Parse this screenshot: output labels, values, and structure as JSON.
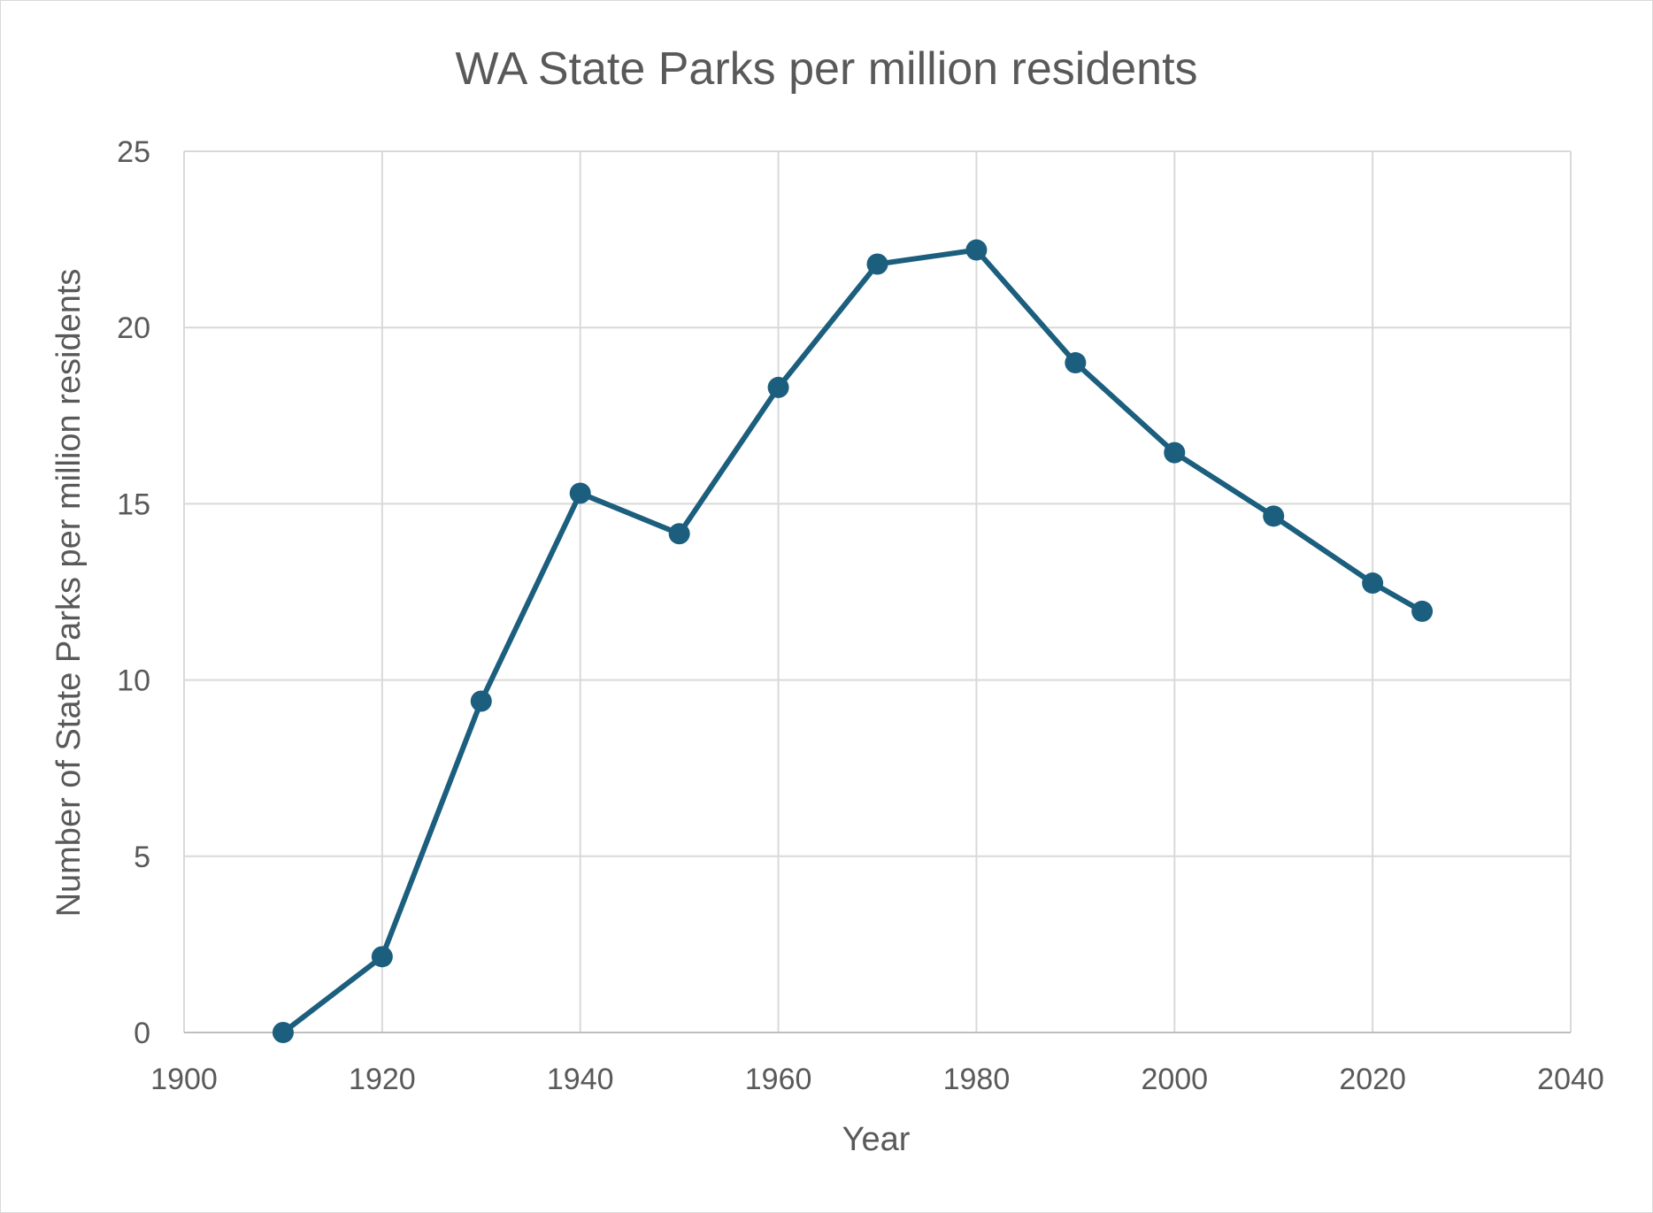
{
  "chart_data": {
    "type": "scatter",
    "mode": "lines+markers",
    "title": "WA State Parks per million residents",
    "xlabel": "Year",
    "ylabel": "Number of State Parks per million  residents",
    "xlim": [
      1900,
      2040
    ],
    "ylim": [
      0,
      25
    ],
    "xticks": [
      1900,
      1920,
      1940,
      1960,
      1980,
      2000,
      2020,
      2040
    ],
    "yticks": [
      0,
      5,
      10,
      15,
      20,
      25
    ],
    "grid": true,
    "legend": "none",
    "series": [
      {
        "color": "#1b5e7e",
        "x": [
          1910,
          1920,
          1930,
          1940,
          1950,
          1960,
          1970,
          1980,
          1990,
          2000,
          2010,
          2020,
          2025
        ],
        "y": [
          0,
          2.15,
          9.4,
          15.3,
          14.15,
          18.3,
          21.8,
          22.2,
          19.0,
          16.45,
          14.65,
          12.75,
          11.95
        ]
      }
    ]
  }
}
